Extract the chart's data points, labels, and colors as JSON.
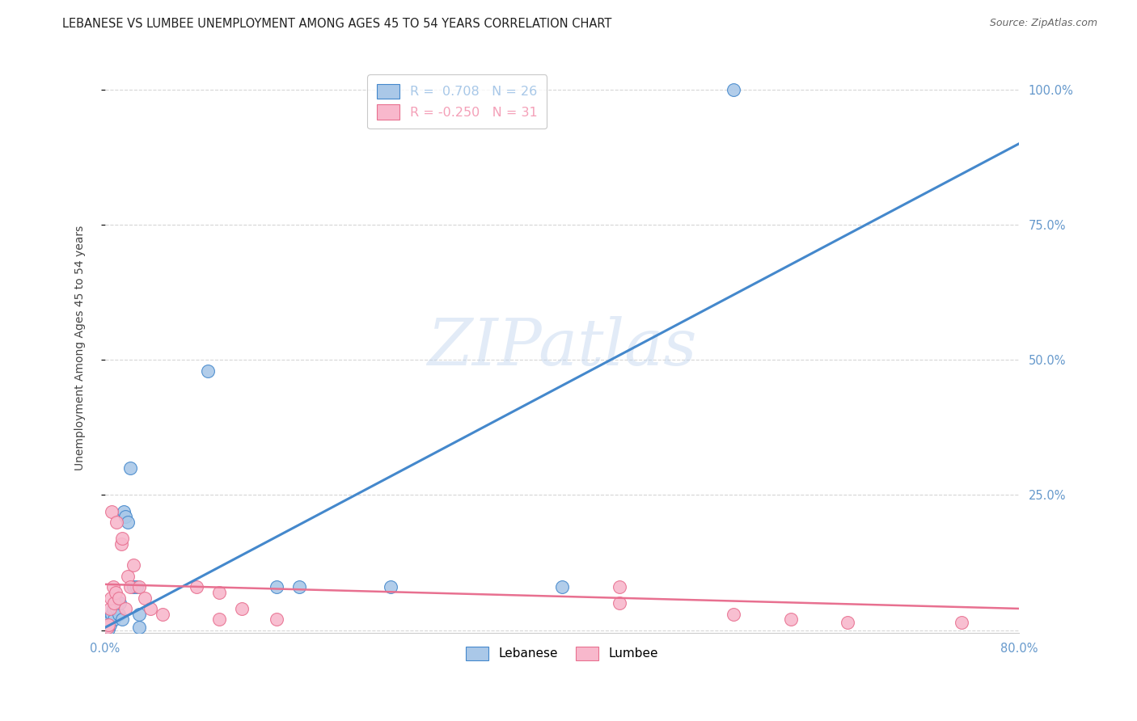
{
  "title": "LEBANESE VS LUMBEE UNEMPLOYMENT AMONG AGES 45 TO 54 YEARS CORRELATION CHART",
  "source": "Source: ZipAtlas.com",
  "ylabel": "Unemployment Among Ages 45 to 54 years",
  "xlim": [
    0.0,
    0.8
  ],
  "ylim": [
    -0.005,
    1.05
  ],
  "ytick_vals": [
    0.0,
    0.25,
    0.5,
    0.75,
    1.0
  ],
  "xtick_vals": [
    0.0,
    0.1,
    0.2,
    0.3,
    0.4,
    0.5,
    0.6,
    0.7,
    0.8
  ],
  "watermark": "ZIPatlas",
  "legend_entries": [
    {
      "label": "R =  0.708   N = 26",
      "color": "#a8c8e8"
    },
    {
      "label": "R = -0.250   N = 31",
      "color": "#f4a0b8"
    }
  ],
  "lebanese_fill_color": "#aac8e8",
  "lumbee_fill_color": "#f8b8cc",
  "lebanese_edge_color": "#4488cc",
  "lumbee_edge_color": "#e87090",
  "lebanese_line_color": "#4488cc",
  "lumbee_line_color": "#e87090",
  "tick_color": "#6699cc",
  "grid_color": "#cccccc",
  "bg_color": "#ffffff",
  "lebanese_scatter": [
    [
      0.002,
      0.005
    ],
    [
      0.003,
      0.003
    ],
    [
      0.004,
      0.01
    ],
    [
      0.005,
      0.02
    ],
    [
      0.006,
      0.03
    ],
    [
      0.007,
      0.04
    ],
    [
      0.008,
      0.02
    ],
    [
      0.009,
      0.05
    ],
    [
      0.01,
      0.04
    ],
    [
      0.012,
      0.03
    ],
    [
      0.013,
      0.05
    ],
    [
      0.015,
      0.02
    ],
    [
      0.016,
      0.22
    ],
    [
      0.018,
      0.21
    ],
    [
      0.02,
      0.2
    ],
    [
      0.022,
      0.3
    ],
    [
      0.025,
      0.08
    ],
    [
      0.028,
      0.08
    ],
    [
      0.03,
      0.03
    ],
    [
      0.03,
      0.005
    ],
    [
      0.09,
      0.48
    ],
    [
      0.15,
      0.08
    ],
    [
      0.17,
      0.08
    ],
    [
      0.25,
      0.08
    ],
    [
      0.55,
      1.0
    ],
    [
      0.4,
      0.08
    ]
  ],
  "lumbee_scatter": [
    [
      0.002,
      0.005
    ],
    [
      0.003,
      0.01
    ],
    [
      0.004,
      0.04
    ],
    [
      0.005,
      0.06
    ],
    [
      0.006,
      0.22
    ],
    [
      0.007,
      0.08
    ],
    [
      0.008,
      0.05
    ],
    [
      0.009,
      0.07
    ],
    [
      0.01,
      0.2
    ],
    [
      0.012,
      0.06
    ],
    [
      0.014,
      0.16
    ],
    [
      0.015,
      0.17
    ],
    [
      0.018,
      0.04
    ],
    [
      0.02,
      0.1
    ],
    [
      0.022,
      0.08
    ],
    [
      0.025,
      0.12
    ],
    [
      0.03,
      0.08
    ],
    [
      0.035,
      0.06
    ],
    [
      0.04,
      0.04
    ],
    [
      0.05,
      0.03
    ],
    [
      0.08,
      0.08
    ],
    [
      0.1,
      0.07
    ],
    [
      0.1,
      0.02
    ],
    [
      0.12,
      0.04
    ],
    [
      0.15,
      0.02
    ],
    [
      0.45,
      0.08
    ],
    [
      0.45,
      0.05
    ],
    [
      0.55,
      0.03
    ],
    [
      0.6,
      0.02
    ],
    [
      0.65,
      0.015
    ],
    [
      0.75,
      0.015
    ]
  ],
  "leb_line_x": [
    0.0,
    0.8
  ],
  "leb_line_y": [
    0.005,
    0.9
  ],
  "lum_line_x": [
    0.0,
    0.8
  ],
  "lum_line_y": [
    0.085,
    0.04
  ]
}
